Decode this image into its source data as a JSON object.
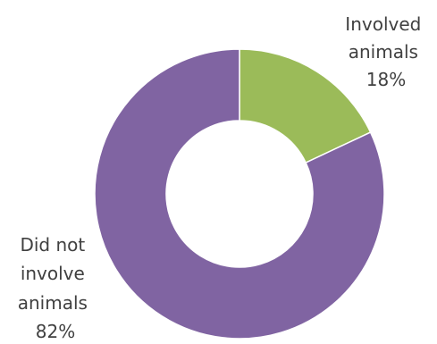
{
  "chart_data": {
    "type": "pie",
    "subtype": "donut",
    "title": "",
    "categories": [
      "Involved animals",
      "Did not involve animals"
    ],
    "values": [
      18,
      82
    ],
    "unit": "%",
    "colors": [
      "#9bbb59",
      "#8064a2"
    ],
    "legend": "none",
    "data_labels": [
      {
        "lines": [
          "Involved",
          "animals",
          "18%"
        ]
      },
      {
        "lines": [
          "Did not",
          "involve",
          "animals",
          "82%"
        ]
      }
    ]
  }
}
